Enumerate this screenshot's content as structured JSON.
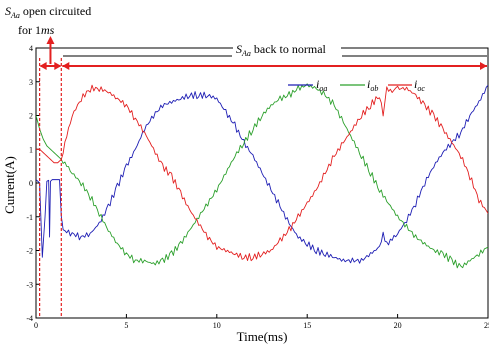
{
  "chart_data": {
    "type": "line",
    "xlabel": "Time(ms)",
    "ylabel": "Current(A)",
    "xlim": [
      0,
      25
    ],
    "ylim": [
      -4,
      4
    ],
    "xticks": [
      0,
      5,
      10,
      15,
      20,
      25
    ],
    "xtick_labels": [
      "0",
      "5",
      "10",
      "15",
      "20",
      "25"
    ],
    "yticks": [
      -4,
      -3,
      -2,
      -1,
      0,
      1,
      2,
      3,
      4
    ],
    "ytick_labels": [
      "-4",
      "-3",
      "-2",
      "-1",
      "0",
      "1",
      "2",
      "3",
      "4"
    ],
    "grid": false,
    "legend_position": "top-right",
    "legend": [
      "i_oa",
      "i_ob",
      "i_oc"
    ],
    "fault_start_ms": 0.2,
    "fault_end_ms": 1.4,
    "series": [
      {
        "name": "i_oa",
        "color": "#1f1fb4",
        "x": [
          0,
          0.2,
          0.35,
          0.5,
          0.6,
          0.7,
          0.75,
          0.8,
          0.9,
          1.0,
          1.1,
          1.2,
          1.3,
          1.4,
          1.5,
          2.0,
          2.5,
          3.0,
          3.5,
          4.0,
          4.5,
          5.0,
          5.5,
          6.0,
          6.5,
          7.0,
          7.5,
          8.0,
          8.5,
          9.0,
          9.5,
          10.0,
          10.5,
          11.0,
          11.5,
          12.0,
          12.5,
          13.0,
          13.5,
          14.0,
          14.5,
          15.0,
          15.5,
          16.0,
          16.5,
          17.0,
          17.5,
          18.0,
          18.5,
          19.0,
          19.2,
          19.4,
          19.6,
          20.0,
          20.5,
          21.0,
          21.5,
          22.0,
          22.5,
          23.0,
          23.5,
          24.0,
          24.5,
          25.0
        ],
        "y": [
          0.1,
          0.0,
          -2.2,
          -1.0,
          0.05,
          0.08,
          -1.6,
          0.05,
          0.1,
          0.1,
          0.1,
          0.1,
          0.1,
          -1.0,
          -1.4,
          -1.5,
          -1.6,
          -1.5,
          -1.2,
          -0.7,
          -0.1,
          0.5,
          1.0,
          1.6,
          2.0,
          2.3,
          2.4,
          2.5,
          2.6,
          2.6,
          2.6,
          2.5,
          2.1,
          1.7,
          1.2,
          0.8,
          0.3,
          -0.2,
          -0.7,
          -1.2,
          -1.6,
          -1.8,
          -2.0,
          -2.1,
          -2.2,
          -2.3,
          -2.3,
          -2.3,
          -2.1,
          -1.9,
          -1.5,
          -1.8,
          -1.7,
          -1.5,
          -1.1,
          -0.6,
          0.0,
          0.5,
          0.9,
          1.2,
          1.5,
          2.0,
          2.4,
          2.9
        ]
      },
      {
        "name": "i_ob",
        "color": "#2ca02c",
        "x": [
          0,
          0.2,
          0.4,
          0.6,
          0.8,
          1.0,
          1.2,
          1.4,
          1.6,
          2.0,
          2.5,
          3.0,
          3.5,
          4.0,
          4.5,
          5.0,
          5.5,
          6.0,
          6.5,
          7.0,
          7.5,
          8.0,
          8.5,
          9.0,
          9.5,
          10.0,
          10.5,
          11.0,
          11.5,
          12.0,
          12.5,
          13.0,
          13.5,
          14.0,
          14.5,
          15.0,
          15.5,
          16.0,
          16.5,
          17.0,
          17.5,
          18.0,
          18.5,
          19.0,
          19.5,
          20.0,
          20.5,
          21.0,
          21.5,
          22.0,
          22.5,
          23.0,
          23.5,
          24.0,
          24.5,
          25.0
        ],
        "y": [
          2.0,
          1.6,
          1.3,
          1.1,
          1.0,
          0.9,
          0.8,
          0.7,
          0.6,
          0.3,
          0.0,
          -0.4,
          -0.9,
          -1.4,
          -1.8,
          -2.1,
          -2.3,
          -2.3,
          -2.4,
          -2.3,
          -2.1,
          -1.8,
          -1.4,
          -1.0,
          -0.6,
          -0.2,
          0.3,
          0.8,
          1.2,
          1.6,
          2.0,
          2.3,
          2.5,
          2.6,
          2.8,
          2.9,
          2.8,
          2.6,
          2.3,
          1.8,
          1.3,
          0.8,
          0.3,
          -0.2,
          -0.6,
          -1.0,
          -1.3,
          -1.6,
          -1.8,
          -2.0,
          -2.1,
          -2.3,
          -2.5,
          -2.3,
          -2.1,
          -1.9
        ]
      },
      {
        "name": "i_oc",
        "color": "#e32020",
        "x": [
          0,
          0.2,
          0.4,
          0.6,
          0.8,
          1.0,
          1.2,
          1.4,
          1.6,
          2.0,
          2.5,
          3.0,
          3.5,
          4.0,
          4.5,
          5.0,
          5.5,
          6.0,
          6.5,
          7.0,
          7.5,
          8.0,
          8.5,
          9.0,
          9.5,
          10.0,
          10.5,
          11.0,
          11.5,
          12.0,
          12.5,
          13.0,
          13.5,
          14.0,
          14.5,
          15.0,
          15.5,
          16.0,
          16.5,
          17.0,
          17.5,
          18.0,
          18.5,
          19.0,
          19.2,
          19.4,
          19.6,
          20.0,
          20.5,
          21.0,
          21.5,
          22.0,
          22.5,
          23.0,
          23.5,
          24.0,
          24.5,
          25.0
        ],
        "y": [
          1.0,
          1.0,
          0.9,
          0.8,
          0.7,
          0.6,
          0.6,
          0.7,
          1.2,
          2.0,
          2.5,
          2.8,
          2.8,
          2.7,
          2.5,
          2.3,
          1.9,
          1.5,
          1.0,
          0.5,
          0.2,
          -0.3,
          -0.8,
          -1.2,
          -1.6,
          -1.9,
          -2.0,
          -2.1,
          -2.2,
          -2.2,
          -2.1,
          -2.0,
          -1.7,
          -1.4,
          -1.0,
          -0.6,
          -0.2,
          0.3,
          0.8,
          1.2,
          1.6,
          2.0,
          2.3,
          2.6,
          2.0,
          2.8,
          2.7,
          2.8,
          2.8,
          2.6,
          2.3,
          2.0,
          1.6,
          1.2,
          0.8,
          0.2,
          -0.5,
          -0.9
        ]
      }
    ],
    "annotations": {
      "fault_label_main": "S",
      "fault_label_sub": "Aa",
      "fault_label_rest": " open circuited",
      "fault_duration_prefix": "for 1",
      "fault_duration_unit": "ms",
      "normal_label_main": "S",
      "normal_label_sub": "Aa",
      "normal_label_rest": " back to normal"
    },
    "legend_entries": [
      {
        "base": "i",
        "sub": "oa",
        "color": "#1f1fb4"
      },
      {
        "base": "i",
        "sub": "ob",
        "color": "#2ca02c"
      },
      {
        "base": "i",
        "sub": "oc",
        "color": "#e32020"
      }
    ],
    "marker_color": "#e32020"
  }
}
